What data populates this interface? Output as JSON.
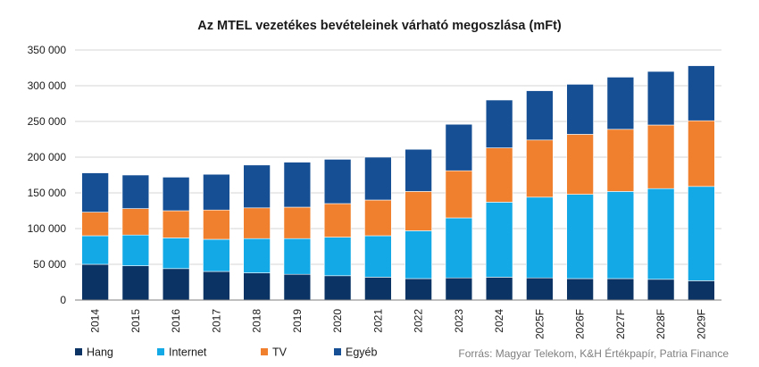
{
  "chart_data": {
    "type": "bar",
    "stacked": true,
    "title": "Az MTEL vezetékes bevételeinek várható megoszlása (mFt)",
    "categories": [
      "2014",
      "2015",
      "2016",
      "2017",
      "2018",
      "2019",
      "2020",
      "2021",
      "2022",
      "2023",
      "2024",
      "2025F",
      "2026F",
      "2027F",
      "2028F",
      "2029F"
    ],
    "series": [
      {
        "name": "Hang",
        "color": "#0b3464",
        "values": [
          50000,
          48000,
          44000,
          40000,
          38000,
          36000,
          34000,
          32000,
          30000,
          31000,
          32000,
          31000,
          30000,
          30000,
          29000,
          27000
        ]
      },
      {
        "name": "Internet",
        "color": "#12a9e6",
        "values": [
          40000,
          43000,
          43000,
          45000,
          48000,
          50000,
          54000,
          58000,
          67000,
          84000,
          105000,
          113000,
          118000,
          122000,
          127000,
          132000
        ]
      },
      {
        "name": "TV",
        "color": "#f0802d",
        "values": [
          33000,
          37000,
          38000,
          41000,
          43000,
          44000,
          47000,
          50000,
          55000,
          66000,
          76000,
          80000,
          84000,
          87000,
          89000,
          92000
        ]
      },
      {
        "name": "Egyéb",
        "color": "#164f94",
        "values": [
          55000,
          47000,
          47000,
          50000,
          60000,
          63000,
          62000,
          60000,
          59000,
          65000,
          67000,
          69000,
          70000,
          73000,
          75000,
          77000
        ]
      }
    ],
    "ylim": [
      0,
      350000
    ],
    "yticks": [
      0,
      50000,
      100000,
      150000,
      200000,
      250000,
      300000,
      350000
    ],
    "ytick_labels": [
      "0",
      "50 000",
      "100 000",
      "150 000",
      "200 000",
      "250 000",
      "300 000",
      "350 000"
    ],
    "grid": true,
    "legend_position": "bottom-left",
    "source": "Forrás: Magyar Telekom, K&H Értékpapír, Patria Finance",
    "xlabel": "",
    "ylabel": ""
  }
}
